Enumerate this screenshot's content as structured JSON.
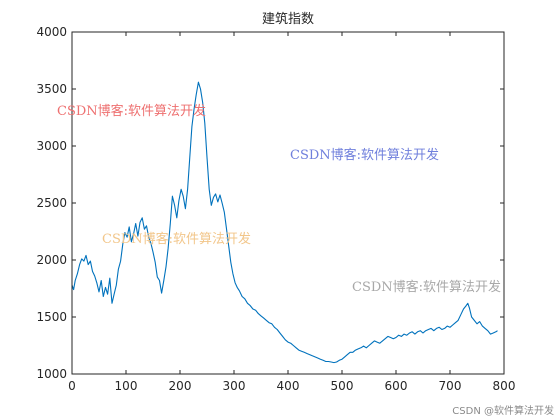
{
  "chart_data": {
    "type": "line",
    "title": "建筑指数",
    "xlabel": "",
    "ylabel": "",
    "xlim": [
      0,
      800
    ],
    "ylim": [
      1000,
      4000
    ],
    "xticks": [
      0,
      100,
      200,
      300,
      400,
      500,
      600,
      700,
      800
    ],
    "yticks": [
      1000,
      1500,
      2000,
      2500,
      3000,
      3500,
      4000
    ],
    "grid": false,
    "series": [
      {
        "color": "#0072bd",
        "points": [
          [
            0,
            1780
          ],
          [
            3,
            1740
          ],
          [
            6,
            1820
          ],
          [
            10,
            1880
          ],
          [
            14,
            1960
          ],
          [
            18,
            2010
          ],
          [
            22,
            1990
          ],
          [
            26,
            2040
          ],
          [
            30,
            1960
          ],
          [
            34,
            1990
          ],
          [
            38,
            1900
          ],
          [
            42,
            1860
          ],
          [
            46,
            1800
          ],
          [
            50,
            1720
          ],
          [
            54,
            1820
          ],
          [
            58,
            1680
          ],
          [
            62,
            1760
          ],
          [
            66,
            1700
          ],
          [
            70,
            1840
          ],
          [
            74,
            1620
          ],
          [
            78,
            1700
          ],
          [
            82,
            1780
          ],
          [
            86,
            1920
          ],
          [
            90,
            1990
          ],
          [
            94,
            2140
          ],
          [
            98,
            2240
          ],
          [
            102,
            2200
          ],
          [
            106,
            2290
          ],
          [
            110,
            2160
          ],
          [
            114,
            2230
          ],
          [
            118,
            2320
          ],
          [
            122,
            2210
          ],
          [
            126,
            2330
          ],
          [
            130,
            2370
          ],
          [
            134,
            2270
          ],
          [
            138,
            2300
          ],
          [
            142,
            2200
          ],
          [
            146,
            2150
          ],
          [
            150,
            2070
          ],
          [
            154,
            1980
          ],
          [
            158,
            1850
          ],
          [
            162,
            1820
          ],
          [
            166,
            1710
          ],
          [
            170,
            1820
          ],
          [
            174,
            1940
          ],
          [
            178,
            2100
          ],
          [
            182,
            2320
          ],
          [
            186,
            2560
          ],
          [
            190,
            2480
          ],
          [
            194,
            2370
          ],
          [
            198,
            2520
          ],
          [
            202,
            2620
          ],
          [
            206,
            2560
          ],
          [
            210,
            2450
          ],
          [
            214,
            2620
          ],
          [
            218,
            2890
          ],
          [
            222,
            3170
          ],
          [
            226,
            3320
          ],
          [
            230,
            3450
          ],
          [
            234,
            3560
          ],
          [
            238,
            3500
          ],
          [
            242,
            3380
          ],
          [
            246,
            3200
          ],
          [
            250,
            2900
          ],
          [
            254,
            2620
          ],
          [
            258,
            2480
          ],
          [
            262,
            2550
          ],
          [
            266,
            2580
          ],
          [
            270,
            2510
          ],
          [
            274,
            2570
          ],
          [
            278,
            2500
          ],
          [
            282,
            2420
          ],
          [
            286,
            2280
          ],
          [
            290,
            2130
          ],
          [
            294,
            1980
          ],
          [
            298,
            1880
          ],
          [
            302,
            1800
          ],
          [
            306,
            1760
          ],
          [
            310,
            1730
          ],
          [
            315,
            1680
          ],
          [
            320,
            1660
          ],
          [
            325,
            1620
          ],
          [
            330,
            1600
          ],
          [
            335,
            1570
          ],
          [
            340,
            1560
          ],
          [
            345,
            1530
          ],
          [
            350,
            1510
          ],
          [
            355,
            1490
          ],
          [
            360,
            1470
          ],
          [
            365,
            1450
          ],
          [
            370,
            1440
          ],
          [
            375,
            1410
          ],
          [
            380,
            1390
          ],
          [
            385,
            1360
          ],
          [
            390,
            1330
          ],
          [
            395,
            1300
          ],
          [
            400,
            1280
          ],
          [
            405,
            1270
          ],
          [
            410,
            1250
          ],
          [
            415,
            1230
          ],
          [
            420,
            1210
          ],
          [
            425,
            1200
          ],
          [
            430,
            1190
          ],
          [
            435,
            1180
          ],
          [
            440,
            1170
          ],
          [
            445,
            1160
          ],
          [
            450,
            1150
          ],
          [
            455,
            1140
          ],
          [
            460,
            1130
          ],
          [
            465,
            1120
          ],
          [
            470,
            1110
          ],
          [
            475,
            1110
          ],
          [
            480,
            1105
          ],
          [
            485,
            1100
          ],
          [
            490,
            1105
          ],
          [
            495,
            1120
          ],
          [
            500,
            1130
          ],
          [
            505,
            1150
          ],
          [
            510,
            1170
          ],
          [
            515,
            1190
          ],
          [
            520,
            1190
          ],
          [
            525,
            1210
          ],
          [
            530,
            1220
          ],
          [
            535,
            1230
          ],
          [
            540,
            1245
          ],
          [
            545,
            1230
          ],
          [
            550,
            1250
          ],
          [
            555,
            1270
          ],
          [
            560,
            1290
          ],
          [
            565,
            1280
          ],
          [
            570,
            1270
          ],
          [
            575,
            1290
          ],
          [
            580,
            1310
          ],
          [
            585,
            1330
          ],
          [
            590,
            1320
          ],
          [
            595,
            1310
          ],
          [
            600,
            1320
          ],
          [
            605,
            1340
          ],
          [
            610,
            1330
          ],
          [
            615,
            1350
          ],
          [
            620,
            1340
          ],
          [
            625,
            1360
          ],
          [
            630,
            1370
          ],
          [
            635,
            1350
          ],
          [
            640,
            1370
          ],
          [
            645,
            1380
          ],
          [
            650,
            1360
          ],
          [
            655,
            1380
          ],
          [
            660,
            1390
          ],
          [
            665,
            1400
          ],
          [
            670,
            1380
          ],
          [
            675,
            1400
          ],
          [
            680,
            1410
          ],
          [
            685,
            1390
          ],
          [
            690,
            1400
          ],
          [
            695,
            1420
          ],
          [
            700,
            1410
          ],
          [
            705,
            1430
          ],
          [
            710,
            1450
          ],
          [
            715,
            1470
          ],
          [
            720,
            1520
          ],
          [
            725,
            1570
          ],
          [
            730,
            1600
          ],
          [
            733,
            1620
          ],
          [
            736,
            1580
          ],
          [
            740,
            1500
          ],
          [
            745,
            1470
          ],
          [
            750,
            1440
          ],
          [
            755,
            1460
          ],
          [
            760,
            1420
          ],
          [
            765,
            1400
          ],
          [
            770,
            1380
          ],
          [
            775,
            1350
          ],
          [
            780,
            1360
          ],
          [
            785,
            1370
          ],
          [
            788,
            1380
          ]
        ]
      }
    ]
  },
  "watermarks": [
    {
      "text": "CSDN博客:软件算法开发",
      "color": "#ee7070"
    },
    {
      "text": "CSDN博客:软件算法开发",
      "color": "#6f7fdc"
    },
    {
      "text": "CSDN博客:软件算法开发",
      "color": "#f2c68a"
    },
    {
      "text": "CSDN博客:软件算法开发",
      "color": "#a8a8a8"
    }
  ],
  "footer": {
    "credit": "CSDN @软件算法开发"
  }
}
